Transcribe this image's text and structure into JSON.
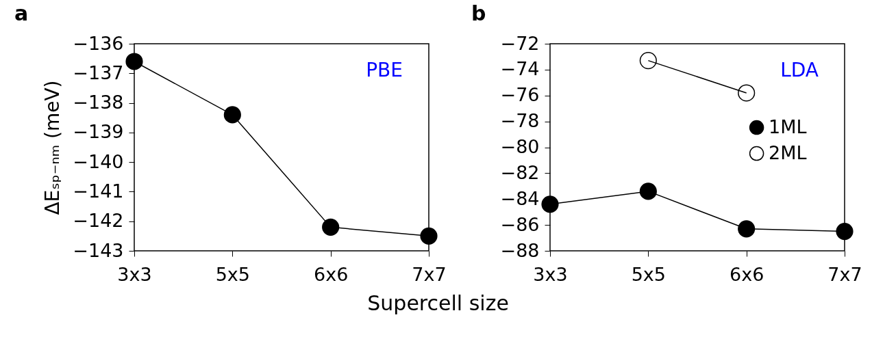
{
  "chart_data": [
    {
      "type": "line",
      "title": "a",
      "xlabel": "Supercell size",
      "ylabel": "ΔEₛₚ₋ₙₘ (meV)",
      "annotations": [
        "PBE"
      ],
      "categories": [
        "3x3",
        "5x5",
        "6x6",
        "7x7"
      ],
      "series": [
        {
          "color": "#000000",
          "values": [
            -136.6,
            -138.4,
            -142.2,
            -142.5
          ]
        }
      ],
      "ylim": [
        -143,
        -136
      ],
      "yticks": [
        -143,
        -142,
        -141,
        -140,
        -139,
        -138,
        -137,
        -136
      ],
      "marker": "circle"
    },
    {
      "type": "line",
      "title": "b",
      "annotations": [
        "LDA"
      ],
      "categories": [
        "3x3",
        "5x5",
        "6x6",
        "7x7"
      ],
      "series": [
        {
          "name": "1ML",
          "color": "#000000",
          "values": [
            -84.4,
            -83.4,
            -86.3,
            -86.5
          ]
        },
        {
          "name": "2ML",
          "color": "#000000",
          "values": [
            null,
            -73.3,
            -75.8,
            null
          ]
        }
      ],
      "ylim": [
        -88,
        -72
      ],
      "yticks": [
        -88,
        -86,
        -84,
        -82,
        -80,
        -78,
        -76,
        -74,
        -72
      ],
      "marker": "circle",
      "legend": "right"
    }
  ]
}
